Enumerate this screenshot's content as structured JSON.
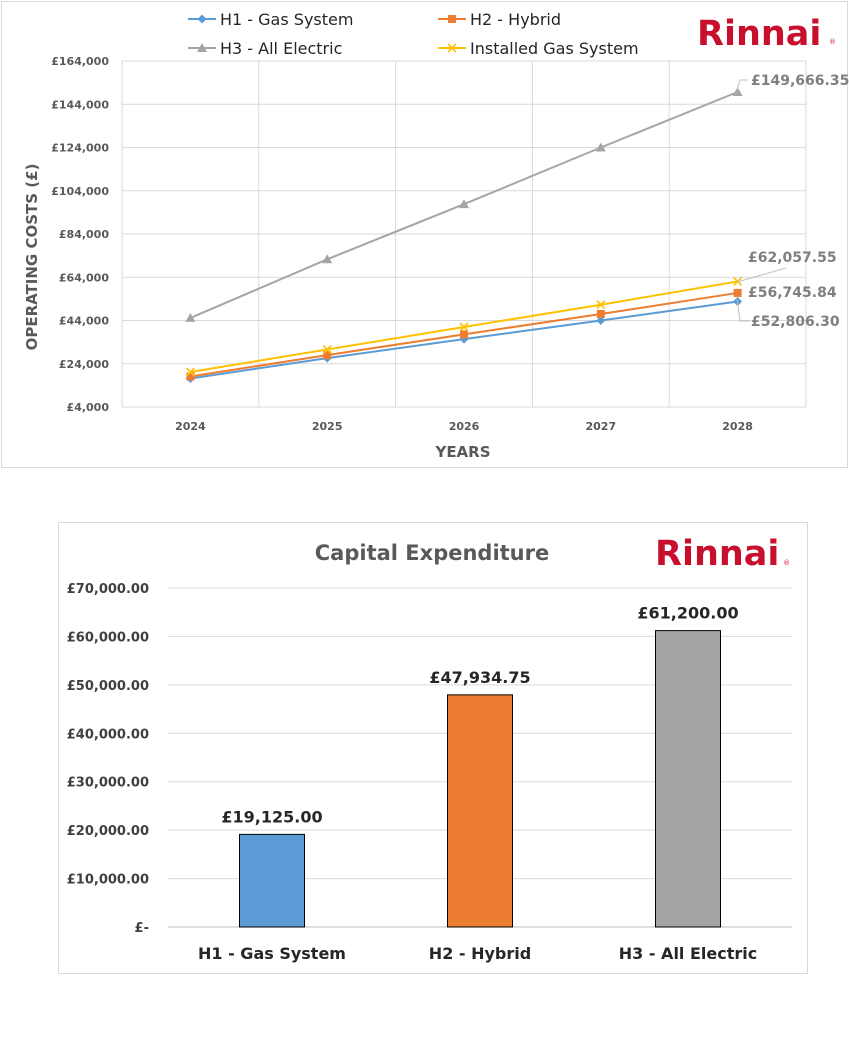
{
  "chart_data": [
    {
      "type": "line",
      "title": "",
      "xlabel": "YEARS",
      "ylabel": "OPERATING COSTS (£)",
      "categories": [
        "2024",
        "2025",
        "2026",
        "2027",
        "2028"
      ],
      "yticks": [
        "£4,000",
        "£24,000",
        "£44,000",
        "£64,000",
        "£84,000",
        "£104,000",
        "£124,000",
        "£144,000",
        "£164,000"
      ],
      "ylim": [
        4000,
        164000
      ],
      "grid": true,
      "legend_position": "top",
      "series": [
        {
          "name": "H1 - Gas System",
          "color": "#5b9bd5",
          "marker": "diamond",
          "values": [
            17200,
            26600,
            35400,
            44000,
            52806.3
          ],
          "end_label": "£52,806.30"
        },
        {
          "name": "H2 - Hybrid",
          "color": "#ed7d31",
          "marker": "square",
          "values": [
            18100,
            28000,
            37600,
            47000,
            56745.84
          ],
          "end_label": "£56,745.84"
        },
        {
          "name": "H3 - All Electric",
          "color": "#a5a5a5",
          "marker": "triangle",
          "values": [
            45200,
            72300,
            97800,
            124000,
            149666.35
          ],
          "end_label": "£149,666.35"
        },
        {
          "name": "Installed Gas System",
          "color": "#ffc000",
          "marker": "x",
          "values": [
            20200,
            30600,
            41000,
            51300,
            62057.55
          ],
          "end_label": "£62,057.55"
        }
      ],
      "logo": "Rinnai"
    },
    {
      "type": "bar",
      "title": "Capital Expenditure",
      "categories": [
        "H1 - Gas System",
        "H2 - Hybrid",
        "H3 - All Electric"
      ],
      "values": [
        19125.0,
        47934.75,
        61200.0
      ],
      "value_labels": [
        "£19,125.00",
        "£47,934.75",
        "£61,200.00"
      ],
      "colors": [
        "#5b9bd5",
        "#ed7d31",
        "#a5a5a5"
      ],
      "yticks": [
        "£-",
        "£10,000.00",
        "£20,000.00",
        "£30,000.00",
        "£40,000.00",
        "£50,000.00",
        "£60,000.00",
        "£70,000.00"
      ],
      "ylim": [
        0,
        70000
      ],
      "grid": true,
      "logo": "Rinnai"
    }
  ]
}
